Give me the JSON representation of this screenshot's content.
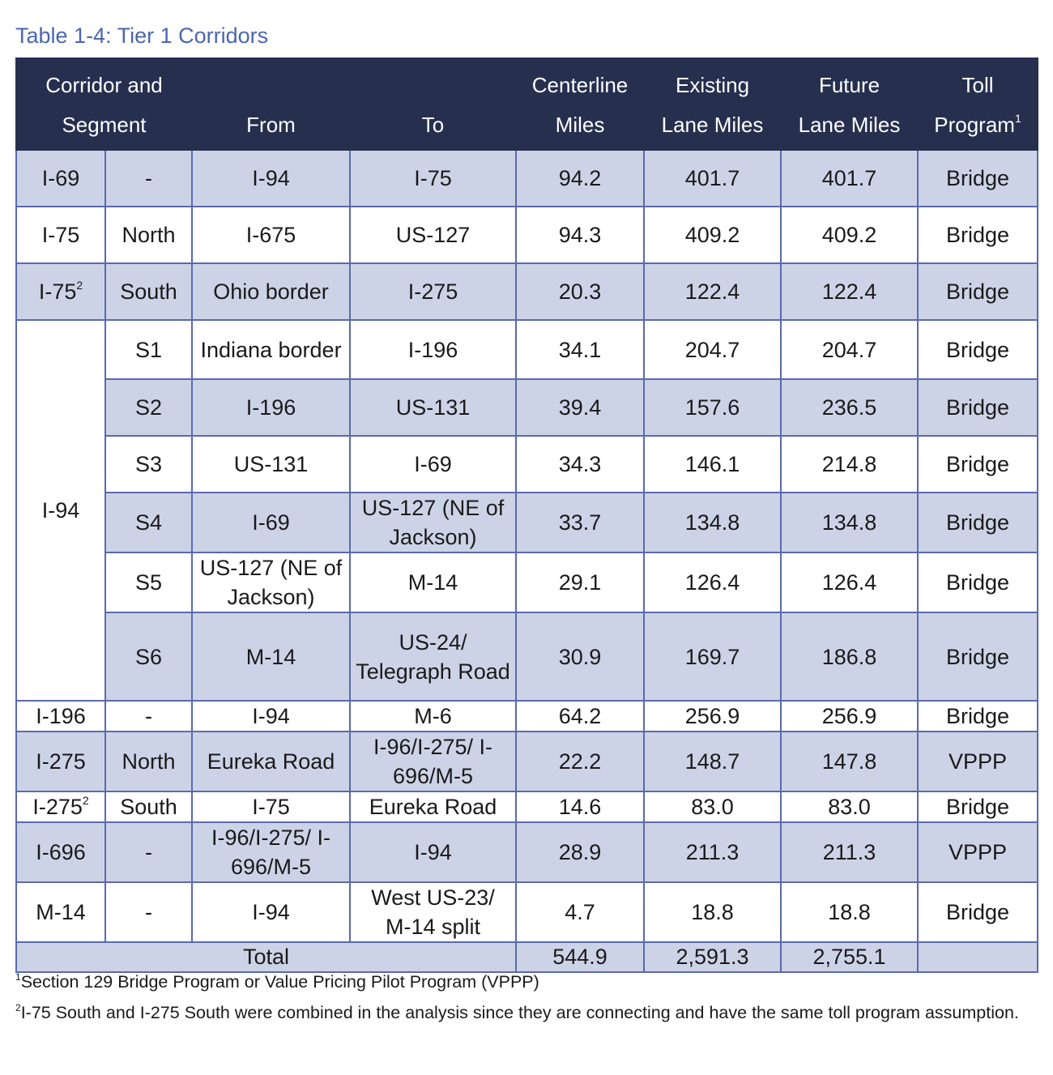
{
  "caption": "Table 1-4: Tier 1 Corridors",
  "headers": {
    "corridor_line1": "Corridor and",
    "corridor_line2": "Segment",
    "from": "From",
    "to": "To",
    "centerline_line1": "Centerline",
    "centerline_line2": "Miles",
    "existing_line1": "Existing",
    "existing_line2": "Lane Miles",
    "future_line1": "Future",
    "future_line2": "Lane Miles",
    "toll_line1": "Toll",
    "toll_line2": "Program",
    "toll_sup": "1"
  },
  "rows": [
    {
      "corridor": "I-69",
      "segment": "-",
      "from": "I-94",
      "to": "I-75",
      "centerline": "94.2",
      "existing": "401.7",
      "future": "401.7",
      "toll": "Bridge"
    },
    {
      "corridor": "I-75",
      "segment": "North",
      "from": "I-675",
      "to": "US-127",
      "centerline": "94.3",
      "existing": "409.2",
      "future": "409.2",
      "toll": "Bridge"
    },
    {
      "corridor": "I-75",
      "corridor_sup": "2",
      "segment": "South",
      "from": "Ohio border",
      "to": "I-275",
      "centerline": "20.3",
      "existing": "122.4",
      "future": "122.4",
      "toll": "Bridge"
    },
    {
      "corridor": "I-94",
      "segment": "S1",
      "from": "Indiana border",
      "to": "I-196",
      "centerline": "34.1",
      "existing": "204.7",
      "future": "204.7",
      "toll": "Bridge"
    },
    {
      "segment": "S2",
      "from": "I-196",
      "to": "US-131",
      "centerline": "39.4",
      "existing": "157.6",
      "future": "236.5",
      "toll": "Bridge"
    },
    {
      "segment": "S3",
      "from": "US-131",
      "to": "I-69",
      "centerline": "34.3",
      "existing": "146.1",
      "future": "214.8",
      "toll": "Bridge"
    },
    {
      "segment": "S4",
      "from": "I-69",
      "to": "US-127 (NE of Jackson)",
      "centerline": "33.7",
      "existing": "134.8",
      "future": "134.8",
      "toll": "Bridge"
    },
    {
      "segment": "S5",
      "from": "US-127 (NE of Jackson)",
      "to": "M-14",
      "centerline": "29.1",
      "existing": "126.4",
      "future": "126.4",
      "toll": "Bridge"
    },
    {
      "segment": "S6",
      "from": "M-14",
      "to": "US-24/ Telegraph Road",
      "centerline": "30.9",
      "existing": "169.7",
      "future": "186.8",
      "toll": "Bridge"
    },
    {
      "corridor": "I-196",
      "segment": "-",
      "from": "I-94",
      "to": "M-6",
      "centerline": "64.2",
      "existing": "256.9",
      "future": "256.9",
      "toll": "Bridge"
    },
    {
      "corridor": "I-275",
      "segment": "North",
      "from": "Eureka Road",
      "to": "I-96/I-275/ I-696/M-5",
      "centerline": "22.2",
      "existing": "148.7",
      "future": "147.8",
      "toll": "VPPP"
    },
    {
      "corridor": "I-275",
      "corridor_sup": "2",
      "segment": "South",
      "from": "I-75",
      "to": "Eureka Road",
      "centerline": "14.6",
      "existing": "83.0",
      "future": "83.0",
      "toll": "Bridge"
    },
    {
      "corridor": "I-696",
      "segment": "-",
      "from": "I-96/I-275/ I-696/M-5",
      "to": "I-94",
      "centerline": "28.9",
      "existing": "211.3",
      "future": "211.3",
      "toll": "VPPP"
    },
    {
      "corridor": "M-14",
      "segment": "-",
      "from": "I-94",
      "to": "West US-23/ M-14 split",
      "centerline": "4.7",
      "existing": "18.8",
      "future": "18.8",
      "toll": "Bridge"
    }
  ],
  "total": {
    "label": "Total",
    "centerline": "544.9",
    "existing": "2,591.3",
    "future": "2,755.1"
  },
  "footnotes": [
    {
      "sup": "1",
      "text": "Section 129 Bridge Program or Value Pricing Pilot Program (VPPP)"
    },
    {
      "sup": "2",
      "text": "I-75 South and I-275 South were combined in the analysis since they are connecting and have the same toll program assumption."
    }
  ]
}
